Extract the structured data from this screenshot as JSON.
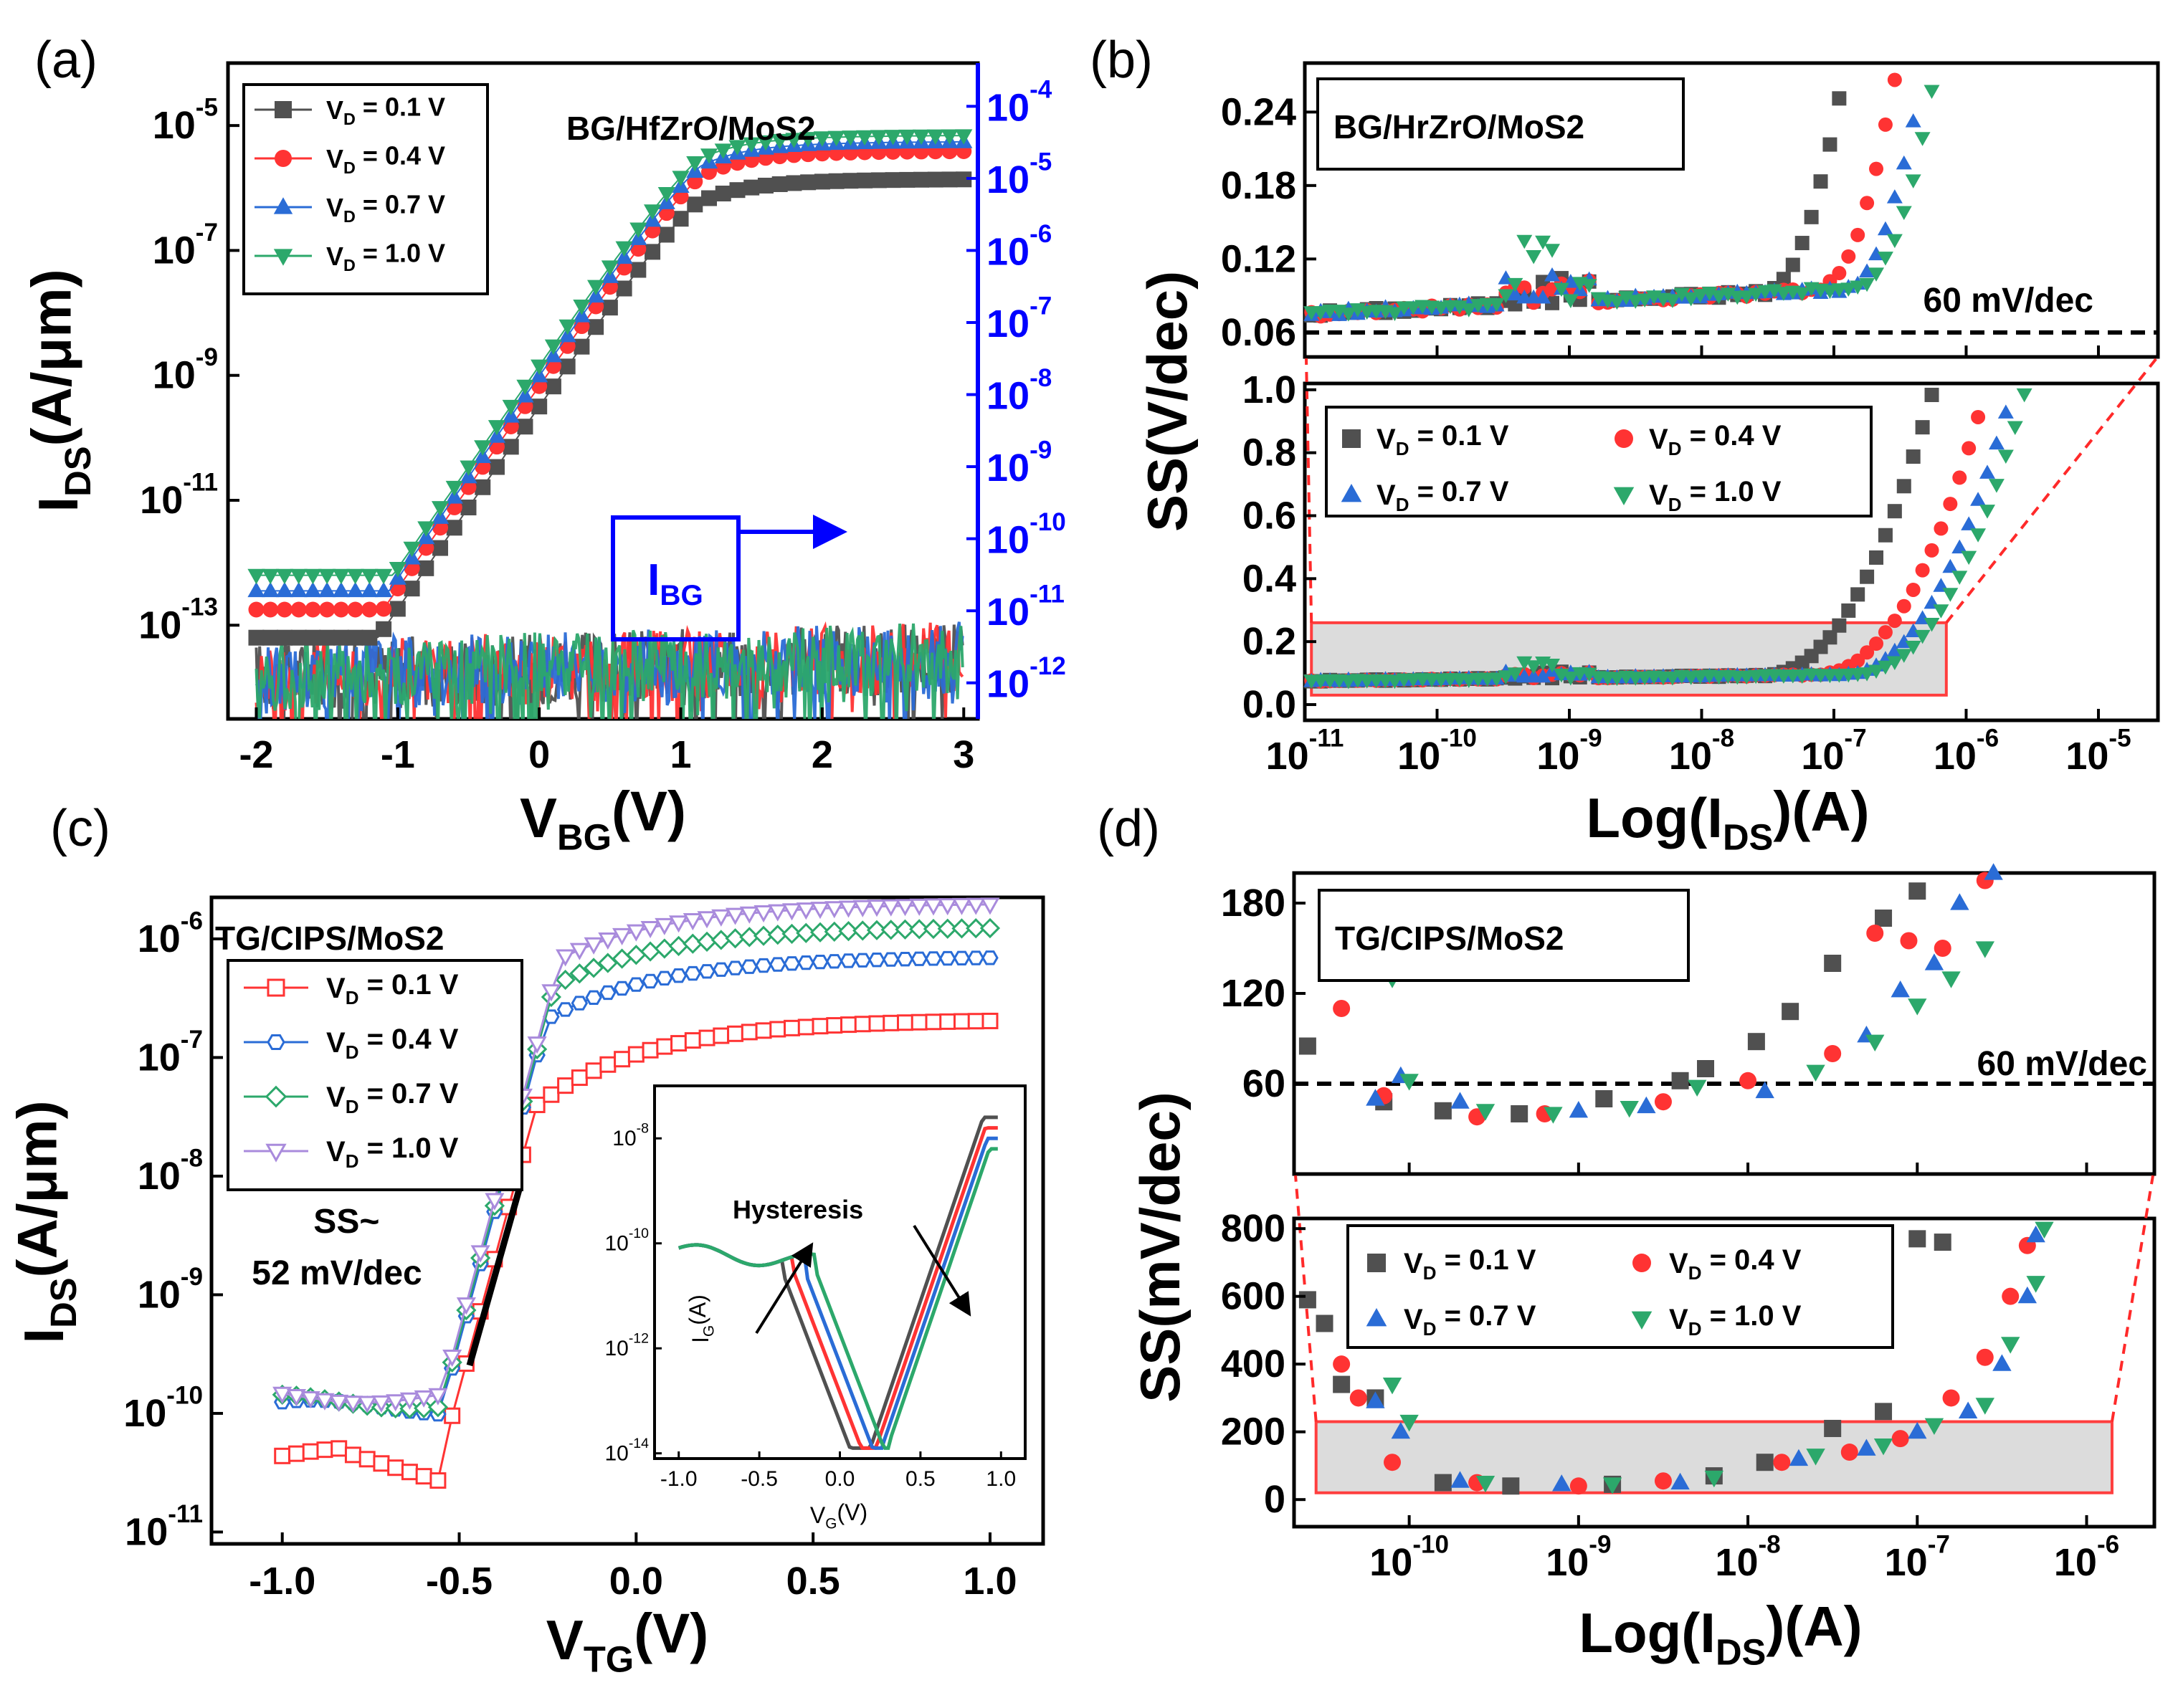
{
  "colors": {
    "black": "#505050",
    "red": "#ff3333",
    "blue": "#2a6cd6",
    "green": "#2ca86b",
    "purple": "#a98bdc",
    "right_axis": "#0000ff",
    "zoom": "#ff2a2a"
  },
  "panel_labels": [
    "(a)",
    "(b)",
    "(c)",
    "(d)"
  ],
  "chart_data": [
    {
      "id": "a",
      "type": "line",
      "title": "BG/HfZrO/MoS2",
      "xlabel": "V_BG(V)",
      "ylabel": "I_DS(A/μm)",
      "y2label": "I_BG",
      "xlim": [
        -2.2,
        3.1
      ],
      "ylim_log10": [
        -14.5,
        -4.0
      ],
      "y2lim_log10": [
        -12.5,
        -3.4
      ],
      "x_ticks": [
        "-2",
        "-1",
        "0",
        "1",
        "2",
        "3"
      ],
      "y_ticks": [
        "10^-13",
        "10^-11",
        "10^-9",
        "10^-7",
        "10^-5"
      ],
      "y2_ticks": [
        "10^-12",
        "10^-11",
        "10^-10",
        "10^-9",
        "10^-8",
        "10^-7",
        "10^-6",
        "10^-5",
        "10^-4"
      ],
      "legend": [
        "V_D = 0.1 V",
        "V_D = 0.4 V",
        "V_D = 0.7 V",
        "V_D = 1.0 V"
      ],
      "series": [
        {
          "name": "V_D = 0.1 V",
          "saturation_log10": -5.85,
          "vth": -1.05
        },
        {
          "name": "V_D = 0.4 V",
          "saturation_log10": -5.4,
          "vth": -1.15
        },
        {
          "name": "V_D = 0.7 V",
          "saturation_log10": -5.25,
          "vth": -1.2
        },
        {
          "name": "V_D = 1.0 V",
          "saturation_log10": -5.15,
          "vth": -1.25
        }
      ],
      "gate_leakage_I_BG_log10_range": [
        -12.3,
        -10.8
      ],
      "annotation": "I_BG"
    },
    {
      "id": "b",
      "type": "scatter",
      "title": "BG/HrZrO/MoS2",
      "xlabel": "Log(I_DS)(A)",
      "ylabel": "SS(V/dec)",
      "x_ticks_log10": [
        -11,
        -10,
        -9,
        -8,
        -7,
        -6,
        -5
      ],
      "top_y_ticks": [
        "0.06",
        "0.12",
        "0.18",
        "0.24"
      ],
      "top_ylim": [
        0.04,
        0.28
      ],
      "bottom_y_ticks": [
        "0.0",
        "0.2",
        "0.4",
        "0.6",
        "0.8",
        "1.0"
      ],
      "bottom_ylim": [
        -0.05,
        1.02
      ],
      "reference_line": {
        "value": 0.06,
        "label": "60 mV/dec"
      },
      "legend": [
        "V_D = 0.1 V",
        "V_D = 0.4 V",
        "V_D = 0.7 V",
        "V_D = 1.0 V"
      ],
      "zoom_box": {
        "x_log10": [
          -10.95,
          -6.15
        ],
        "y": [
          0.03,
          0.26
        ]
      }
    },
    {
      "id": "c",
      "type": "line",
      "title": "TG/CIPS/MoS2",
      "xlabel": "V_TG(V)",
      "ylabel": "I_DS(A/μm)",
      "xlim": [
        -1.2,
        1.15
      ],
      "ylim_log10": [
        -11.1,
        -5.65
      ],
      "x_ticks": [
        "-1.0",
        "-0.5",
        "0.0",
        "0.5",
        "1.0"
      ],
      "y_ticks": [
        "10^-11",
        "10^-10",
        "10^-9",
        "10^-8",
        "10^-7",
        "10^-6"
      ],
      "legend": [
        "V_D = 0.1 V",
        "V_D = 0.4 V",
        "V_D = 0.7 V",
        "V_D = 1.0 V"
      ],
      "series": [
        {
          "name": "V_D = 0.1 V",
          "saturation_log10": -6.68
        },
        {
          "name": "V_D = 0.4 V",
          "saturation_log10": -6.15
        },
        {
          "name": "V_D = 0.7 V",
          "saturation_log10": -5.9
        },
        {
          "name": "V_D = 1.0 V",
          "saturation_log10": -5.7
        }
      ],
      "annotation": "SS~ 52 mV/dec",
      "inset": {
        "xlabel": "V_G(V)",
        "ylabel": "I_G(A)",
        "x_ticks": [
          "-1.0",
          "-0.5",
          "0.0",
          "0.5",
          "1.0"
        ],
        "y_ticks": [
          "10^-14",
          "10^-12",
          "10^-10",
          "10^-8"
        ],
        "annotation": "Hysteresis"
      }
    },
    {
      "id": "d",
      "type": "scatter",
      "title": "TG/CIPS/MoS2",
      "xlabel": "Log(I_DS)(A)",
      "ylabel": "SS(mV/dec)",
      "x_ticks_log10": [
        -10,
        -9,
        -8,
        -7,
        -6
      ],
      "top_y_ticks": [
        "60",
        "120",
        "180"
      ],
      "top_ylim": [
        0,
        200
      ],
      "bottom_y_ticks": [
        "0",
        "200",
        "400",
        "600",
        "800"
      ],
      "bottom_ylim": [
        -80,
        830
      ],
      "reference_line": {
        "value": 60,
        "label": "60 mV/dec"
      },
      "legend": [
        "V_D = 0.1 V",
        "V_D = 0.4 V",
        "V_D = 0.7 V",
        "V_D = 1.0 V"
      ],
      "zoom_box": {
        "x_log10": [
          -10.55,
          -5.85
        ],
        "y": [
          20,
          230
        ]
      }
    }
  ]
}
